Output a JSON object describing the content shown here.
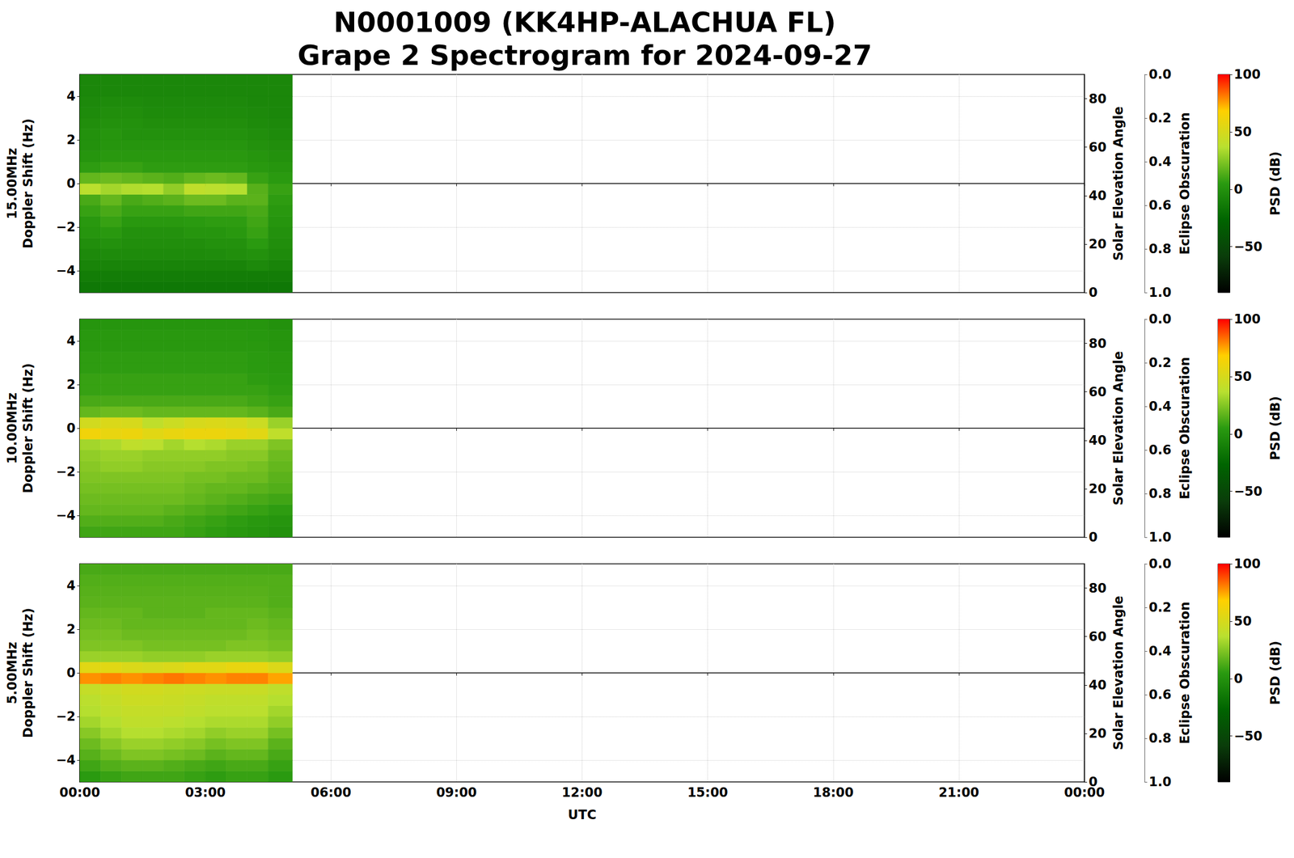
{
  "chart_data": {
    "type": "heatmap",
    "title": "N0001009 (KK4HP-ALACHUA FL)\nGrape 2 Spectrogram for 2024-09-27",
    "xlabel": "UTC",
    "xlim": [
      0,
      24
    ],
    "xticks": [
      {
        "value": 0,
        "label": "00:00"
      },
      {
        "value": 3,
        "label": "03:00"
      },
      {
        "value": 6,
        "label": "06:00"
      },
      {
        "value": 9,
        "label": "09:00"
      },
      {
        "value": 12,
        "label": "12:00"
      },
      {
        "value": 15,
        "label": "15:00"
      },
      {
        "value": 18,
        "label": "18:00"
      },
      {
        "value": 21,
        "label": "21:00"
      },
      {
        "value": 24,
        "label": "00:00"
      }
    ],
    "grid": true,
    "panels": [
      {
        "ylabel": "15.00MHz\nDoppler Shift (Hz)",
        "tick_labels": "y",
        "ylim": [
          -5,
          5
        ],
        "yticks": [
          {
            "value": -4,
            "label": "−4"
          },
          {
            "value": -2,
            "label": "−2"
          },
          0,
          2,
          4
        ],
        "y2label": "Solar Elevation Angle",
        "y2lim": [
          0,
          90
        ],
        "y2ticks": [
          0,
          20,
          40,
          60,
          80
        ],
        "y3label": "Eclipse Obscuration",
        "y3lim": [
          1,
          0
        ],
        "y3ticks": [
          {
            "value": 0,
            "label": "0.0"
          },
          0.2,
          0.4,
          0.6,
          0.8,
          {
            "value": 1,
            "label": "1.0"
          }
        ],
        "colorbar": {
          "label": "PSD (dB)",
          "range": [
            -90,
            100
          ],
          "ticks": [
            {
              "value": -50,
              "label": "−50"
            },
            0,
            50,
            100
          ]
        },
        "time_bins": [
          0,
          0.5,
          1,
          1.5,
          2,
          2.5,
          3,
          3.5,
          4,
          4.5,
          5.08
        ],
        "doppler_bins": [
          -5,
          -4.5,
          -4,
          -3.5,
          -3,
          -2.5,
          -2,
          -1.5,
          -1,
          -0.5,
          0,
          0.5,
          1,
          1.5,
          2,
          2.5,
          3,
          3.5,
          4,
          4.5,
          5
        ],
        "psd": [
          [
            -15,
            -15,
            -15,
            -15,
            -15,
            -15,
            -15,
            -15,
            -15,
            -15
          ],
          [
            -12,
            -12,
            -12,
            -12,
            -12,
            -12,
            -12,
            -12,
            -12,
            -12
          ],
          [
            -8,
            -8,
            -8,
            -8,
            -8,
            -8,
            -8,
            -8,
            -5,
            -8
          ],
          [
            -5,
            -4,
            -4,
            -4,
            -4,
            -4,
            -3,
            -2,
            0,
            -4
          ],
          [
            -2,
            0,
            -2,
            -2,
            -2,
            -2,
            0,
            0,
            5,
            -2
          ],
          [
            2,
            4,
            0,
            0,
            0,
            2,
            2,
            4,
            8,
            0
          ],
          [
            4,
            8,
            4,
            4,
            4,
            5,
            6,
            6,
            10,
            2
          ],
          [
            8,
            12,
            8,
            8,
            8,
            10,
            10,
            10,
            12,
            4
          ],
          [
            12,
            18,
            12,
            14,
            16,
            20,
            20,
            16,
            16,
            6
          ],
          [
            38,
            32,
            35,
            36,
            28,
            40,
            38,
            36,
            15,
            8
          ],
          [
            18,
            20,
            18,
            16,
            14,
            18,
            20,
            18,
            8,
            5
          ],
          [
            6,
            8,
            8,
            6,
            6,
            6,
            6,
            6,
            4,
            2
          ],
          [
            2,
            4,
            4,
            4,
            4,
            4,
            4,
            4,
            2,
            0
          ],
          [
            0,
            2,
            2,
            2,
            2,
            2,
            2,
            2,
            0,
            -2
          ],
          [
            0,
            2,
            0,
            0,
            0,
            0,
            0,
            0,
            -2,
            -4
          ],
          [
            -2,
            0,
            0,
            -2,
            -2,
            -2,
            -2,
            -2,
            -4,
            -5
          ],
          [
            -4,
            -2,
            -2,
            -4,
            -4,
            -4,
            -4,
            -4,
            -5,
            -6
          ],
          [
            -5,
            -4,
            -4,
            -5,
            -5,
            -5,
            -5,
            -5,
            -6,
            -6
          ],
          [
            -6,
            -6,
            -6,
            -6,
            -6,
            -6,
            -6,
            -6,
            -6,
            -6
          ],
          [
            -6,
            -6,
            -6,
            -6,
            -6,
            -6,
            -6,
            -6,
            -6,
            -6
          ]
        ]
      },
      {
        "ylabel": "10.00MHz\nDoppler Shift (Hz)",
        "tick_labels": "y",
        "ylim": [
          -5,
          5
        ],
        "yticks": [
          {
            "value": -4,
            "label": "−4"
          },
          {
            "value": -2,
            "label": "−2"
          },
          0,
          2,
          4
        ],
        "y2label": "Solar Elevation Angle",
        "y2lim": [
          0,
          90
        ],
        "y2ticks": [
          0,
          20,
          40,
          60,
          80
        ],
        "y3label": "Eclipse Obscuration",
        "y3lim": [
          1,
          0
        ],
        "y3ticks": [
          {
            "value": 0,
            "label": "0.0"
          },
          0.2,
          0.4,
          0.6,
          0.8,
          {
            "value": 1,
            "label": "1.0"
          }
        ],
        "colorbar": {
          "label": "PSD (dB)",
          "range": [
            -90,
            100
          ],
          "ticks": [
            {
              "value": -50,
              "label": "−50"
            },
            0,
            50,
            100
          ]
        },
        "time_bins": [
          0,
          0.5,
          1,
          1.5,
          2,
          2.5,
          3,
          3.5,
          4,
          4.5,
          5.08
        ],
        "doppler_bins": [
          -5,
          -4.5,
          -4,
          -3.5,
          -3,
          -2.5,
          -2,
          -1.5,
          -1,
          -0.5,
          0,
          0.5,
          1,
          1.5,
          2,
          2.5,
          3,
          3.5,
          4,
          4.5,
          5
        ],
        "psd": [
          [
            10,
            10,
            10,
            10,
            10,
            8,
            6,
            4,
            2,
            0
          ],
          [
            14,
            14,
            14,
            14,
            12,
            10,
            8,
            6,
            4,
            2
          ],
          [
            18,
            18,
            18,
            18,
            16,
            14,
            12,
            10,
            8,
            6
          ],
          [
            20,
            20,
            20,
            20,
            20,
            18,
            16,
            14,
            12,
            10
          ],
          [
            22,
            22,
            22,
            22,
            22,
            20,
            18,
            18,
            16,
            14
          ],
          [
            24,
            24,
            24,
            24,
            24,
            22,
            22,
            20,
            20,
            16
          ],
          [
            26,
            28,
            28,
            26,
            26,
            26,
            24,
            24,
            22,
            18
          ],
          [
            28,
            30,
            30,
            28,
            28,
            28,
            28,
            26,
            26,
            20
          ],
          [
            32,
            34,
            40,
            38,
            32,
            36,
            34,
            30,
            30,
            24
          ],
          [
            62,
            58,
            60,
            55,
            58,
            60,
            60,
            58,
            55,
            40
          ],
          [
            48,
            52,
            50,
            40,
            45,
            50,
            52,
            50,
            45,
            30
          ],
          [
            18,
            20,
            20,
            18,
            18,
            18,
            18,
            18,
            16,
            12
          ],
          [
            12,
            12,
            12,
            12,
            12,
            12,
            12,
            12,
            10,
            8
          ],
          [
            8,
            8,
            8,
            8,
            8,
            8,
            8,
            8,
            8,
            6
          ],
          [
            8,
            8,
            8,
            8,
            8,
            8,
            8,
            8,
            6,
            5
          ],
          [
            6,
            6,
            6,
            6,
            6,
            6,
            6,
            6,
            5,
            4
          ],
          [
            6,
            6,
            6,
            6,
            6,
            6,
            6,
            6,
            5,
            4
          ],
          [
            4,
            4,
            4,
            4,
            4,
            4,
            4,
            4,
            4,
            2
          ],
          [
            4,
            4,
            4,
            4,
            4,
            4,
            4,
            4,
            3,
            2
          ],
          [
            2,
            2,
            2,
            2,
            2,
            2,
            2,
            2,
            2,
            0
          ]
        ]
      },
      {
        "ylabel": "5.00MHz\nDoppler Shift (Hz)",
        "ylim": [
          -5,
          5
        ],
        "yticks": [
          {
            "value": -4,
            "label": "−4"
          },
          {
            "value": -2,
            "label": "−2"
          },
          0,
          2,
          4
        ],
        "y2label": "Solar Elevation Angle",
        "y2lim": [
          0,
          90
        ],
        "y2ticks": [
          0,
          20,
          40,
          60,
          80
        ],
        "y3label": "Eclipse Obscuration",
        "y3lim": [
          1,
          0
        ],
        "y3ticks": [
          {
            "value": 0,
            "label": "0.0"
          },
          0.2,
          0.4,
          0.6,
          0.8,
          {
            "value": 1,
            "label": "1.0"
          }
        ],
        "colorbar": {
          "label": "PSD (dB)",
          "range": [
            -90,
            100
          ],
          "ticks": [
            {
              "value": -50,
              "label": "−50"
            },
            0,
            50,
            100
          ]
        },
        "time_bins": [
          0,
          0.5,
          1,
          1.5,
          2,
          2.5,
          3,
          3.5,
          4,
          4.5,
          5.08
        ],
        "doppler_bins": [
          -5,
          -4.5,
          -4,
          -3.5,
          -3,
          -2.5,
          -2,
          -1.5,
          -1,
          -0.5,
          0,
          0.5,
          1,
          1.5,
          2,
          2.5,
          3,
          3.5,
          4,
          4.5,
          5
        ],
        "psd": [
          [
            5,
            8,
            10,
            10,
            10,
            8,
            6,
            8,
            8,
            5
          ],
          [
            10,
            14,
            16,
            16,
            14,
            12,
            10,
            12,
            12,
            8
          ],
          [
            15,
            20,
            24,
            24,
            22,
            20,
            16,
            18,
            18,
            12
          ],
          [
            20,
            26,
            30,
            30,
            28,
            26,
            22,
            24,
            24,
            16
          ],
          [
            26,
            32,
            36,
            36,
            34,
            32,
            28,
            30,
            30,
            22
          ],
          [
            32,
            36,
            40,
            40,
            38,
            36,
            34,
            34,
            34,
            28
          ],
          [
            36,
            40,
            42,
            42,
            42,
            40,
            38,
            38,
            38,
            32
          ],
          [
            38,
            42,
            45,
            45,
            44,
            42,
            40,
            40,
            40,
            36
          ],
          [
            42,
            45,
            48,
            48,
            46,
            45,
            44,
            44,
            44,
            40
          ],
          [
            78,
            80,
            78,
            80,
            82,
            80,
            78,
            80,
            80,
            75
          ],
          [
            55,
            55,
            52,
            50,
            52,
            55,
            55,
            58,
            58,
            52
          ],
          [
            30,
            30,
            30,
            28,
            28,
            28,
            30,
            30,
            30,
            28
          ],
          [
            24,
            24,
            24,
            22,
            22,
            22,
            22,
            24,
            24,
            22
          ],
          [
            22,
            22,
            20,
            20,
            20,
            20,
            20,
            20,
            22,
            20
          ],
          [
            20,
            20,
            18,
            18,
            18,
            18,
            18,
            18,
            20,
            18
          ],
          [
            18,
            18,
            18,
            16,
            16,
            16,
            18,
            18,
            18,
            16
          ],
          [
            16,
            16,
            16,
            16,
            16,
            16,
            16,
            16,
            16,
            14
          ],
          [
            15,
            15,
            15,
            15,
            15,
            15,
            15,
            15,
            15,
            14
          ],
          [
            14,
            14,
            14,
            14,
            14,
            14,
            14,
            14,
            14,
            14
          ],
          [
            12,
            12,
            12,
            12,
            12,
            12,
            12,
            12,
            12,
            12
          ]
        ]
      }
    ]
  }
}
